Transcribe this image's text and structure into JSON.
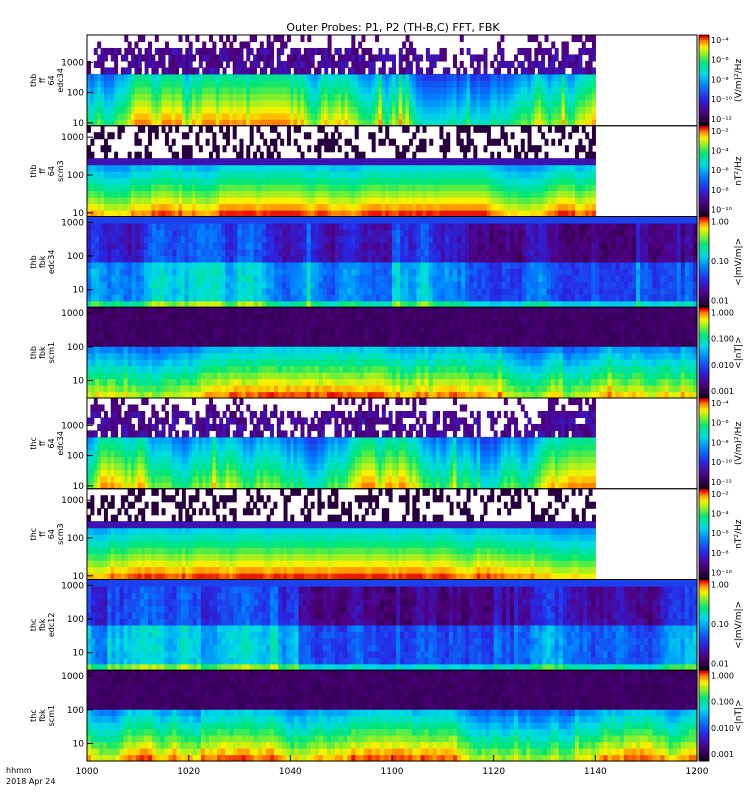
{
  "chart_data": {
    "type": "heatmap",
    "title": "Outer Probes: P1, P2 (TH-B,C) FFT, FBK",
    "time_label_line1": "hhmm",
    "time_label_line2": "2018 Apr 24",
    "x_ticks": [
      "1000",
      "1020",
      "1040",
      "1100",
      "1120",
      "1140",
      "1200"
    ],
    "x_range": [
      "10:00",
      "12:00"
    ],
    "y_scale": "log",
    "panels": [
      {
        "ylabel": [
          "thb",
          "ff",
          "64",
          "edc34"
        ],
        "y_ticks": [
          "10",
          "100",
          "1000"
        ],
        "y_range": [
          8,
          8000
        ],
        "colorbar_ticks": [
          "10⁻⁴",
          "10⁻⁶",
          "10⁻⁸",
          "10⁻¹⁰",
          "10⁻¹²"
        ],
        "colorbar_unit": "(V/m)²/Hz",
        "data_end": "11:40",
        "style": "ff_e"
      },
      {
        "ylabel": [
          "thb",
          "ff",
          "64",
          "scm3"
        ],
        "y_ticks": [
          "10",
          "100",
          "1000"
        ],
        "y_range": [
          8,
          2000
        ],
        "colorbar_ticks": [
          "10⁻²",
          "10⁻⁴",
          "10⁻⁶",
          "10⁻⁸",
          "10⁻¹⁰"
        ],
        "colorbar_unit": "nT²/Hz",
        "data_end": "11:40",
        "style": "ff_b"
      },
      {
        "ylabel": [
          "thb",
          "fbk",
          "edc34"
        ],
        "y_ticks": [
          "10",
          "100",
          "1000"
        ],
        "y_range": [
          3,
          1500
        ],
        "colorbar_ticks": [
          "1.00",
          "0.10",
          "0.01"
        ],
        "colorbar_unit": "<|mV/m|>",
        "data_end": "12:00",
        "style": "fbk_e"
      },
      {
        "ylabel": [
          "thb",
          "fbk",
          "scm1"
        ],
        "y_ticks": [
          "10",
          "100",
          "1000"
        ],
        "y_range": [
          3,
          1500
        ],
        "colorbar_ticks": [
          "1.000",
          "0.100",
          "0.010",
          "0.001"
        ],
        "colorbar_unit": "<|nT|>",
        "data_end": "12:00",
        "style": "fbk_b"
      },
      {
        "ylabel": [
          "thc",
          "ff",
          "64",
          "edc34"
        ],
        "y_ticks": [
          "10",
          "100",
          "1000"
        ],
        "y_range": [
          8,
          8000
        ],
        "colorbar_ticks": [
          "10⁻⁴",
          "10⁻⁶",
          "10⁻⁸",
          "10⁻¹⁰",
          "10⁻¹²"
        ],
        "colorbar_unit": "(V/m)²/Hz",
        "data_end": "11:40",
        "style": "ff_e"
      },
      {
        "ylabel": [
          "thc",
          "ff",
          "64",
          "scm3"
        ],
        "y_ticks": [
          "10",
          "100",
          "1000"
        ],
        "y_range": [
          8,
          2000
        ],
        "colorbar_ticks": [
          "10⁻²",
          "10⁻⁴",
          "10⁻⁶",
          "10⁻⁸",
          "10⁻¹⁰"
        ],
        "colorbar_unit": "nT²/Hz",
        "data_end": "11:40",
        "style": "ff_b"
      },
      {
        "ylabel": [
          "thc",
          "fbk",
          "edc12"
        ],
        "y_ticks": [
          "10",
          "100",
          "1000"
        ],
        "y_range": [
          3,
          1500
        ],
        "colorbar_ticks": [
          "1.00",
          "0.10",
          "0.01"
        ],
        "colorbar_unit": "<|mV/m|>",
        "data_end": "12:00",
        "style": "fbk_e"
      },
      {
        "ylabel": [
          "thc",
          "fbk",
          "scm1"
        ],
        "y_ticks": [
          "10",
          "100",
          "1000"
        ],
        "y_range": [
          3,
          1500
        ],
        "colorbar_ticks": [
          "1.000",
          "0.100",
          "0.010",
          "0.001"
        ],
        "colorbar_unit": "<|nT|>",
        "data_end": "12:00",
        "style": "fbk_b"
      }
    ]
  }
}
